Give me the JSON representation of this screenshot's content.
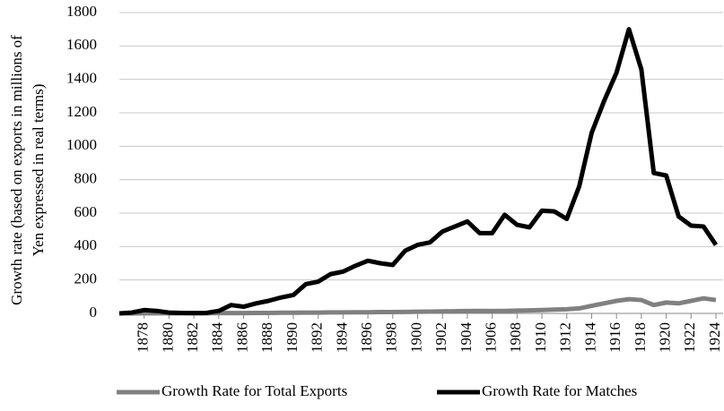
{
  "chart_data": {
    "type": "line",
    "y_label": [
      "Growth rate (based on exports in millions of",
      "Yen expressed in real terms)"
    ],
    "x": [
      1876,
      1877,
      1878,
      1879,
      1880,
      1881,
      1882,
      1883,
      1884,
      1885,
      1886,
      1887,
      1888,
      1889,
      1890,
      1891,
      1892,
      1893,
      1894,
      1895,
      1896,
      1897,
      1898,
      1899,
      1900,
      1901,
      1902,
      1903,
      1904,
      1905,
      1906,
      1907,
      1908,
      1909,
      1910,
      1911,
      1912,
      1913,
      1914,
      1915,
      1916,
      1917,
      1918,
      1919,
      1920,
      1921,
      1922,
      1923,
      1924
    ],
    "series": [
      {
        "name": "Growth Rate for Total Exports",
        "color": "#808080",
        "values": [
          0,
          0,
          1,
          1,
          1,
          1,
          1,
          1,
          2,
          2,
          2,
          3,
          3,
          4,
          4,
          5,
          5,
          6,
          6,
          7,
          7,
          8,
          8,
          9,
          10,
          11,
          12,
          13,
          14,
          15,
          14,
          15,
          17,
          18,
          20,
          23,
          25,
          30,
          45,
          60,
          75,
          85,
          80,
          50,
          65,
          60,
          75,
          90,
          80
        ]
      },
      {
        "name": "Growth Rate for Matches",
        "color": "#000000",
        "values": [
          0,
          5,
          20,
          15,
          5,
          3,
          2,
          3,
          15,
          50,
          40,
          60,
          75,
          95,
          110,
          175,
          190,
          235,
          250,
          285,
          315,
          300,
          290,
          375,
          410,
          425,
          490,
          520,
          550,
          480,
          480,
          590,
          530,
          515,
          615,
          610,
          565,
          760,
          1080,
          1270,
          1440,
          1700,
          1460,
          840,
          825,
          580,
          525,
          520,
          410
        ]
      }
    ],
    "xlim": [
      1876,
      1924
    ],
    "xticks": [
      1878,
      1880,
      1882,
      1884,
      1886,
      1888,
      1890,
      1892,
      1894,
      1896,
      1898,
      1900,
      1902,
      1904,
      1906,
      1908,
      1910,
      1912,
      1914,
      1916,
      1918,
      1920,
      1922,
      1924
    ],
    "ylim": [
      0,
      1800
    ],
    "yticks": [
      0,
      200,
      400,
      600,
      800,
      1000,
      1200,
      1400,
      1600,
      1800
    ],
    "grid": true,
    "legend": "bottom"
  }
}
